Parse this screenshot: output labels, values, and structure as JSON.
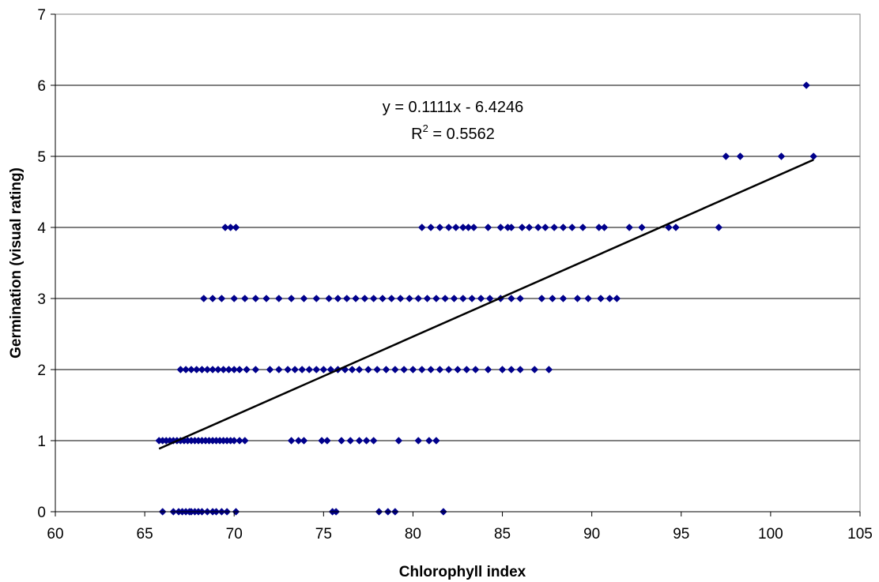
{
  "chart_data": {
    "type": "scatter",
    "title": "",
    "xlabel": "Chlorophyll index",
    "ylabel": "Germination (visual rating)",
    "xlim": [
      60,
      105
    ],
    "ylim": [
      0,
      7
    ],
    "xticks": [
      60,
      65,
      70,
      75,
      80,
      85,
      90,
      95,
      100,
      105
    ],
    "yticks": [
      0,
      1,
      2,
      3,
      4,
      5,
      6,
      7
    ],
    "x_tick_labels": [
      "60",
      "65",
      "70",
      "75",
      "80",
      "85",
      "90",
      "95",
      "100",
      "105"
    ],
    "y_tick_labels": [
      "0",
      "1",
      "2",
      "3",
      "4",
      "5",
      "6",
      "7"
    ],
    "grid": "horizontal",
    "marker": "diamond",
    "marker_color": "#00008B",
    "series": [
      {
        "points": [
          [
            66.0,
            0
          ],
          [
            66.6,
            0
          ],
          [
            66.9,
            0
          ],
          [
            67.1,
            0
          ],
          [
            67.3,
            0
          ],
          [
            67.5,
            0
          ],
          [
            67.6,
            0
          ],
          [
            67.8,
            0
          ],
          [
            68.0,
            0
          ],
          [
            68.2,
            0
          ],
          [
            68.5,
            0
          ],
          [
            68.8,
            0
          ],
          [
            69.0,
            0
          ],
          [
            69.3,
            0
          ],
          [
            69.6,
            0
          ],
          [
            70.1,
            0
          ],
          [
            75.5,
            0
          ],
          [
            75.7,
            0
          ],
          [
            78.1,
            0
          ],
          [
            78.6,
            0
          ],
          [
            79.0,
            0
          ],
          [
            81.7,
            0
          ],
          [
            65.8,
            1
          ],
          [
            66.0,
            1
          ],
          [
            66.2,
            1
          ],
          [
            66.4,
            1
          ],
          [
            66.6,
            1
          ],
          [
            66.8,
            1
          ],
          [
            67.0,
            1
          ],
          [
            67.2,
            1
          ],
          [
            67.4,
            1
          ],
          [
            67.6,
            1
          ],
          [
            67.8,
            1
          ],
          [
            68.0,
            1
          ],
          [
            68.2,
            1
          ],
          [
            68.4,
            1
          ],
          [
            68.6,
            1
          ],
          [
            68.8,
            1
          ],
          [
            69.0,
            1
          ],
          [
            69.2,
            1
          ],
          [
            69.4,
            1
          ],
          [
            69.6,
            1
          ],
          [
            69.8,
            1
          ],
          [
            70.0,
            1
          ],
          [
            70.3,
            1
          ],
          [
            70.6,
            1
          ],
          [
            73.2,
            1
          ],
          [
            73.6,
            1
          ],
          [
            73.9,
            1
          ],
          [
            74.9,
            1
          ],
          [
            75.2,
            1
          ],
          [
            76.0,
            1
          ],
          [
            76.5,
            1
          ],
          [
            77.0,
            1
          ],
          [
            77.4,
            1
          ],
          [
            77.8,
            1
          ],
          [
            79.2,
            1
          ],
          [
            80.3,
            1
          ],
          [
            80.9,
            1
          ],
          [
            81.3,
            1
          ],
          [
            67.0,
            2
          ],
          [
            67.3,
            2
          ],
          [
            67.6,
            2
          ],
          [
            67.9,
            2
          ],
          [
            68.2,
            2
          ],
          [
            68.5,
            2
          ],
          [
            68.8,
            2
          ],
          [
            69.1,
            2
          ],
          [
            69.4,
            2
          ],
          [
            69.7,
            2
          ],
          [
            70.0,
            2
          ],
          [
            70.3,
            2
          ],
          [
            70.7,
            2
          ],
          [
            71.2,
            2
          ],
          [
            72.0,
            2
          ],
          [
            72.5,
            2
          ],
          [
            73.0,
            2
          ],
          [
            73.4,
            2
          ],
          [
            73.8,
            2
          ],
          [
            74.2,
            2
          ],
          [
            74.6,
            2
          ],
          [
            75.0,
            2
          ],
          [
            75.4,
            2
          ],
          [
            75.8,
            2
          ],
          [
            76.2,
            2
          ],
          [
            76.6,
            2
          ],
          [
            77.0,
            2
          ],
          [
            77.5,
            2
          ],
          [
            78.0,
            2
          ],
          [
            78.5,
            2
          ],
          [
            79.0,
            2
          ],
          [
            79.5,
            2
          ],
          [
            80.0,
            2
          ],
          [
            80.5,
            2
          ],
          [
            81.0,
            2
          ],
          [
            81.5,
            2
          ],
          [
            82.0,
            2
          ],
          [
            82.5,
            2
          ],
          [
            83.0,
            2
          ],
          [
            83.5,
            2
          ],
          [
            84.2,
            2
          ],
          [
            85.0,
            2
          ],
          [
            85.5,
            2
          ],
          [
            86.0,
            2
          ],
          [
            86.8,
            2
          ],
          [
            87.6,
            2
          ],
          [
            68.3,
            3
          ],
          [
            68.8,
            3
          ],
          [
            69.3,
            3
          ],
          [
            70.0,
            3
          ],
          [
            70.6,
            3
          ],
          [
            71.2,
            3
          ],
          [
            71.8,
            3
          ],
          [
            72.5,
            3
          ],
          [
            73.2,
            3
          ],
          [
            73.9,
            3
          ],
          [
            74.6,
            3
          ],
          [
            75.3,
            3
          ],
          [
            75.8,
            3
          ],
          [
            76.3,
            3
          ],
          [
            76.8,
            3
          ],
          [
            77.3,
            3
          ],
          [
            77.8,
            3
          ],
          [
            78.3,
            3
          ],
          [
            78.8,
            3
          ],
          [
            79.3,
            3
          ],
          [
            79.8,
            3
          ],
          [
            80.3,
            3
          ],
          [
            80.8,
            3
          ],
          [
            81.3,
            3
          ],
          [
            81.8,
            3
          ],
          [
            82.3,
            3
          ],
          [
            82.8,
            3
          ],
          [
            83.3,
            3
          ],
          [
            83.8,
            3
          ],
          [
            84.3,
            3
          ],
          [
            84.9,
            3
          ],
          [
            85.5,
            3
          ],
          [
            86.0,
            3
          ],
          [
            87.2,
            3
          ],
          [
            87.8,
            3
          ],
          [
            88.4,
            3
          ],
          [
            89.2,
            3
          ],
          [
            89.8,
            3
          ],
          [
            90.5,
            3
          ],
          [
            91.0,
            3
          ],
          [
            91.4,
            3
          ],
          [
            69.5,
            4
          ],
          [
            69.8,
            4
          ],
          [
            70.1,
            4
          ],
          [
            80.5,
            4
          ],
          [
            81.0,
            4
          ],
          [
            81.5,
            4
          ],
          [
            82.0,
            4
          ],
          [
            82.4,
            4
          ],
          [
            82.8,
            4
          ],
          [
            83.1,
            4
          ],
          [
            83.4,
            4
          ],
          [
            84.2,
            4
          ],
          [
            84.9,
            4
          ],
          [
            85.3,
            4
          ],
          [
            85.5,
            4
          ],
          [
            86.1,
            4
          ],
          [
            86.5,
            4
          ],
          [
            87.0,
            4
          ],
          [
            87.4,
            4
          ],
          [
            87.9,
            4
          ],
          [
            88.4,
            4
          ],
          [
            88.9,
            4
          ],
          [
            89.5,
            4
          ],
          [
            90.4,
            4
          ],
          [
            90.7,
            4
          ],
          [
            92.1,
            4
          ],
          [
            92.8,
            4
          ],
          [
            94.3,
            4
          ],
          [
            94.7,
            4
          ],
          [
            97.1,
            4
          ],
          [
            97.5,
            5
          ],
          [
            98.3,
            5
          ],
          [
            100.6,
            5
          ],
          [
            102.4,
            5
          ],
          [
            102.0,
            6
          ]
        ]
      }
    ],
    "trendline": {
      "type": "linear",
      "slope": 0.1111,
      "intercept": -6.4246,
      "x_range": [
        65.8,
        102.4
      ],
      "equation_label": "y = 0.1111x - 6.4246",
      "r2_prefix": "R",
      "r2_superscript": "2",
      "r2_value": " = 0.5562"
    }
  }
}
